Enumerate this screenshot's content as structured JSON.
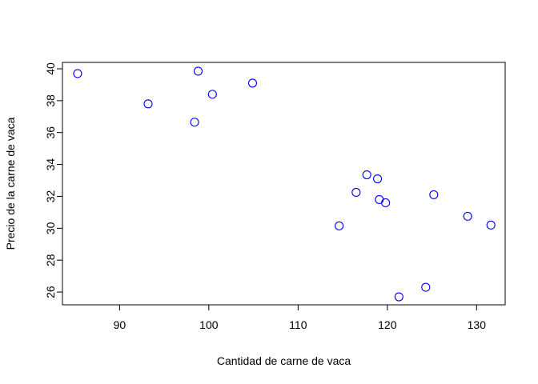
{
  "chart_data": {
    "type": "scatter",
    "title": "",
    "xlabel": "Cantidad de carne de vaca",
    "ylabel": "Precio de la carne de vaca",
    "xlim": [
      83.6,
      133.2
    ],
    "ylim": [
      25.2,
      40.4
    ],
    "xticks": [
      90,
      100,
      110,
      120,
      130
    ],
    "yticks": [
      26,
      28,
      30,
      32,
      34,
      36,
      38,
      40
    ],
    "grid": false,
    "legend": "none",
    "point_color": "#0000ff",
    "points": [
      {
        "x": 85.3,
        "y": 39.7
      },
      {
        "x": 93.2,
        "y": 37.8
      },
      {
        "x": 98.4,
        "y": 36.65
      },
      {
        "x": 98.8,
        "y": 39.85
      },
      {
        "x": 100.4,
        "y": 38.4
      },
      {
        "x": 104.9,
        "y": 39.1
      },
      {
        "x": 114.6,
        "y": 30.15
      },
      {
        "x": 116.5,
        "y": 32.25
      },
      {
        "x": 117.7,
        "y": 33.35
      },
      {
        "x": 118.9,
        "y": 33.1
      },
      {
        "x": 119.1,
        "y": 31.8
      },
      {
        "x": 119.8,
        "y": 31.6
      },
      {
        "x": 121.3,
        "y": 25.7
      },
      {
        "x": 124.3,
        "y": 26.3
      },
      {
        "x": 125.2,
        "y": 32.1
      },
      {
        "x": 129.0,
        "y": 30.75
      },
      {
        "x": 131.6,
        "y": 30.2
      }
    ]
  }
}
